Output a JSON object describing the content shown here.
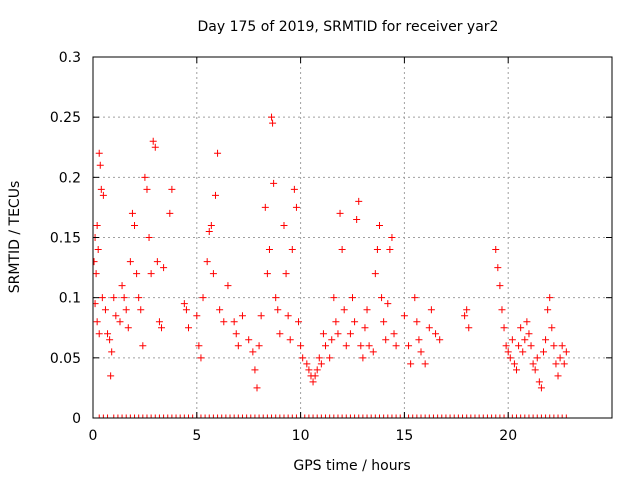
{
  "chart_data": {
    "type": "scatter",
    "title": "Day 175 of 2019, SRMTID for receiver yar2",
    "xlabel": "GPS time / hours",
    "ylabel": "SRMTID / TECUs",
    "xlim": [
      0,
      25
    ],
    "ylim": [
      0,
      0.3
    ],
    "xticks": [
      0,
      5,
      10,
      15,
      20
    ],
    "yticks": [
      0,
      0.05,
      0.1,
      0.15,
      0.2,
      0.25,
      0.3
    ],
    "xtick_labels": [
      "0",
      "5",
      "10",
      "15",
      "20"
    ],
    "ytick_labels": [
      "0",
      "0.05",
      "0.1",
      "0.15",
      "0.2",
      "0.25",
      "0.3"
    ],
    "grid": true,
    "marker": "+",
    "color": "#ff0000",
    "series": [
      {
        "name": "SRMTID",
        "points": [
          [
            0.05,
            0.13
          ],
          [
            0.1,
            0.15
          ],
          [
            0.15,
            0.12
          ],
          [
            0.2,
            0.16
          ],
          [
            0.25,
            0.14
          ],
          [
            0.3,
            0.22
          ],
          [
            0.35,
            0.21
          ],
          [
            0.4,
            0.19
          ],
          [
            0.45,
            0.1
          ],
          [
            0.5,
            0.185
          ],
          [
            0.2,
            0.08
          ],
          [
            0.3,
            0.07
          ],
          [
            0.1,
            0.095
          ],
          [
            0.6,
            0.09
          ],
          [
            0.7,
            0.07
          ],
          [
            0.8,
            0.065
          ],
          [
            0.9,
            0.055
          ],
          [
            0.85,
            0.035
          ],
          [
            1.0,
            0.1
          ],
          [
            1.1,
            0.085
          ],
          [
            1.3,
            0.08
          ],
          [
            1.4,
            0.11
          ],
          [
            1.5,
            0.1
          ],
          [
            1.6,
            0.09
          ],
          [
            1.7,
            0.075
          ],
          [
            1.8,
            0.13
          ],
          [
            1.9,
            0.17
          ],
          [
            2.0,
            0.16
          ],
          [
            2.1,
            0.12
          ],
          [
            2.2,
            0.1
          ],
          [
            2.3,
            0.09
          ],
          [
            2.4,
            0.06
          ],
          [
            2.5,
            0.2
          ],
          [
            2.6,
            0.19
          ],
          [
            2.7,
            0.15
          ],
          [
            2.8,
            0.12
          ],
          [
            2.9,
            0.23
          ],
          [
            3.0,
            0.225
          ],
          [
            3.1,
            0.13
          ],
          [
            3.2,
            0.08
          ],
          [
            3.3,
            0.075
          ],
          [
            3.4,
            0.125
          ],
          [
            3.7,
            0.17
          ],
          [
            3.8,
            0.19
          ],
          [
            4.4,
            0.095
          ],
          [
            4.5,
            0.09
          ],
          [
            4.6,
            0.075
          ],
          [
            5.0,
            0.085
          ],
          [
            5.1,
            0.06
          ],
          [
            5.2,
            0.05
          ],
          [
            5.3,
            0.1
          ],
          [
            5.5,
            0.13
          ],
          [
            5.6,
            0.155
          ],
          [
            5.7,
            0.16
          ],
          [
            5.8,
            0.12
          ],
          [
            5.9,
            0.185
          ],
          [
            6.0,
            0.22
          ],
          [
            6.1,
            0.09
          ],
          [
            6.3,
            0.08
          ],
          [
            6.5,
            0.11
          ],
          [
            6.8,
            0.08
          ],
          [
            6.9,
            0.07
          ],
          [
            7.0,
            0.06
          ],
          [
            7.2,
            0.085
          ],
          [
            7.5,
            0.065
          ],
          [
            7.7,
            0.055
          ],
          [
            7.8,
            0.04
          ],
          [
            7.9,
            0.025
          ],
          [
            8.0,
            0.06
          ],
          [
            8.1,
            0.085
          ],
          [
            8.3,
            0.175
          ],
          [
            8.4,
            0.12
          ],
          [
            8.5,
            0.14
          ],
          [
            8.6,
            0.25
          ],
          [
            8.65,
            0.245
          ],
          [
            8.7,
            0.195
          ],
          [
            8.8,
            0.1
          ],
          [
            8.9,
            0.09
          ],
          [
            9.0,
            0.07
          ],
          [
            9.2,
            0.16
          ],
          [
            9.3,
            0.12
          ],
          [
            9.4,
            0.085
          ],
          [
            9.5,
            0.065
          ],
          [
            9.6,
            0.14
          ],
          [
            9.7,
            0.19
          ],
          [
            9.8,
            0.175
          ],
          [
            9.9,
            0.08
          ],
          [
            10.0,
            0.06
          ],
          [
            10.1,
            0.05
          ],
          [
            10.3,
            0.045
          ],
          [
            10.4,
            0.04
          ],
          [
            10.5,
            0.035
          ],
          [
            10.6,
            0.03
          ],
          [
            10.7,
            0.035
          ],
          [
            10.8,
            0.04
          ],
          [
            10.9,
            0.05
          ],
          [
            11.0,
            0.045
          ],
          [
            11.1,
            0.07
          ],
          [
            11.2,
            0.06
          ],
          [
            11.4,
            0.05
          ],
          [
            11.5,
            0.065
          ],
          [
            11.6,
            0.1
          ],
          [
            11.7,
            0.08
          ],
          [
            11.8,
            0.07
          ],
          [
            11.9,
            0.17
          ],
          [
            12.0,
            0.14
          ],
          [
            12.1,
            0.09
          ],
          [
            12.2,
            0.06
          ],
          [
            12.4,
            0.07
          ],
          [
            12.5,
            0.1
          ],
          [
            12.6,
            0.08
          ],
          [
            12.7,
            0.165
          ],
          [
            12.8,
            0.18
          ],
          [
            12.9,
            0.06
          ],
          [
            13.0,
            0.05
          ],
          [
            13.1,
            0.075
          ],
          [
            13.2,
            0.09
          ],
          [
            13.3,
            0.06
          ],
          [
            13.5,
            0.055
          ],
          [
            13.6,
            0.12
          ],
          [
            13.7,
            0.14
          ],
          [
            13.8,
            0.16
          ],
          [
            13.9,
            0.1
          ],
          [
            14.0,
            0.08
          ],
          [
            14.1,
            0.065
          ],
          [
            14.2,
            0.095
          ],
          [
            14.3,
            0.14
          ],
          [
            14.4,
            0.15
          ],
          [
            14.5,
            0.07
          ],
          [
            14.6,
            0.06
          ],
          [
            15.0,
            0.085
          ],
          [
            15.2,
            0.06
          ],
          [
            15.3,
            0.045
          ],
          [
            15.5,
            0.1
          ],
          [
            15.6,
            0.08
          ],
          [
            15.7,
            0.065
          ],
          [
            15.8,
            0.055
          ],
          [
            16.0,
            0.045
          ],
          [
            16.2,
            0.075
          ],
          [
            16.3,
            0.09
          ],
          [
            16.5,
            0.07
          ],
          [
            16.7,
            0.065
          ],
          [
            17.9,
            0.085
          ],
          [
            18.0,
            0.09
          ],
          [
            18.1,
            0.075
          ],
          [
            19.4,
            0.14
          ],
          [
            19.5,
            0.125
          ],
          [
            19.6,
            0.11
          ],
          [
            19.7,
            0.09
          ],
          [
            19.8,
            0.075
          ],
          [
            19.9,
            0.06
          ],
          [
            20.0,
            0.055
          ],
          [
            20.1,
            0.05
          ],
          [
            20.2,
            0.065
          ],
          [
            20.3,
            0.045
          ],
          [
            20.4,
            0.04
          ],
          [
            20.5,
            0.06
          ],
          [
            20.6,
            0.075
          ],
          [
            20.7,
            0.055
          ],
          [
            20.8,
            0.065
          ],
          [
            20.9,
            0.08
          ],
          [
            21.0,
            0.07
          ],
          [
            21.1,
            0.06
          ],
          [
            21.2,
            0.045
          ],
          [
            21.3,
            0.04
          ],
          [
            21.4,
            0.05
          ],
          [
            21.5,
            0.03
          ],
          [
            21.6,
            0.025
          ],
          [
            21.7,
            0.055
          ],
          [
            21.8,
            0.065
          ],
          [
            21.9,
            0.09
          ],
          [
            22.0,
            0.1
          ],
          [
            22.1,
            0.075
          ],
          [
            22.2,
            0.06
          ],
          [
            22.3,
            0.045
          ],
          [
            22.4,
            0.035
          ],
          [
            22.5,
            0.05
          ],
          [
            22.6,
            0.06
          ],
          [
            22.7,
            0.045
          ],
          [
            22.8,
            0.055
          ]
        ]
      }
    ],
    "zero_points_x": [
      0.0,
      0.3,
      0.5,
      0.7,
      1.0,
      1.2,
      1.4,
      1.6,
      1.8,
      2.0,
      2.2,
      2.4,
      2.6,
      2.8,
      3.0,
      3.2,
      3.4,
      3.6,
      3.8,
      4.0,
      4.2,
      4.4,
      4.6,
      4.8,
      5.0,
      5.2,
      5.4,
      5.6,
      5.8,
      6.0,
      6.2,
      6.4,
      6.6,
      6.8,
      7.0,
      7.2,
      7.4,
      7.6,
      7.8,
      8.0,
      8.2,
      8.4,
      8.6,
      8.8,
      9.0,
      9.2,
      9.4,
      9.6,
      9.8,
      10.0,
      10.2,
      10.4,
      10.6,
      10.8,
      11.0,
      11.2,
      11.4,
      11.6,
      11.8,
      12.0,
      12.2,
      12.4,
      12.6,
      12.8,
      13.0,
      13.2,
      13.4,
      13.6,
      13.8,
      14.0,
      14.2,
      14.4,
      14.6,
      14.8,
      15.0,
      15.2,
      15.4,
      15.6,
      15.8,
      16.0,
      16.2,
      16.4,
      16.6,
      16.8,
      17.0,
      17.2,
      17.4,
      17.6,
      17.8,
      18.0,
      18.2,
      18.4,
      18.6,
      18.8,
      19.0,
      19.2,
      19.4,
      19.6,
      19.8,
      20.0,
      20.2,
      20.4,
      20.6,
      20.8,
      21.0,
      21.2,
      21.4,
      21.6,
      21.8,
      22.0,
      22.2,
      22.4,
      22.6,
      22.8
    ]
  }
}
